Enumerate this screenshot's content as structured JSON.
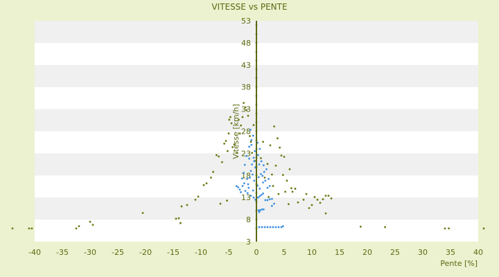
{
  "chart_data": {
    "type": "scatter",
    "title": "VITESSE vs PENTE",
    "xlabel": "Pente [%]",
    "ylabel": "Vitesse [km/h]",
    "xlim": [
      -40,
      40
    ],
    "ylim": [
      3,
      53
    ],
    "xticks": [
      -40,
      -35,
      -30,
      -25,
      -20,
      -15,
      -10,
      -5,
      0,
      5,
      10,
      15,
      20,
      25,
      30,
      35,
      40
    ],
    "yticks": [
      3,
      8,
      13,
      18,
      23,
      28,
      33,
      38,
      43,
      48,
      53
    ],
    "xtick_labels": [
      "-40",
      "-35",
      "-30",
      "-25",
      "-20",
      "-15",
      "-10",
      "-5",
      "0",
      "5",
      "10",
      "15",
      "20",
      "25",
      "30",
      "35",
      "40"
    ],
    "ytick_labels": [
      "3",
      "8",
      "13",
      "18",
      "23",
      "28",
      "33",
      "38",
      "43",
      "48",
      "53"
    ],
    "grid": "horizontal bands",
    "legend": "none",
    "colors": {
      "background": "#ecf1cf",
      "band_light": "#ffffff",
      "band_shade": "#f0f0f0",
      "olive": "#6b7a14",
      "blue": "#3f8fe0"
    },
    "series": [
      {
        "color": "#6b7a14",
        "points": [
          [
            -44,
            6
          ],
          [
            -41,
            6
          ],
          [
            -40.5,
            6
          ],
          [
            -32.5,
            6
          ],
          [
            -32,
            6.5
          ],
          [
            -30,
            7.5
          ],
          [
            -29.5,
            6.8
          ],
          [
            -20.5,
            9.5
          ],
          [
            -14.5,
            8.2
          ],
          [
            -14,
            8.3
          ],
          [
            -13.7,
            7.2
          ],
          [
            -13.5,
            11
          ],
          [
            -12.5,
            11.3
          ],
          [
            -11,
            12.5
          ],
          [
            -10.5,
            13.2
          ],
          [
            -9.5,
            15.8
          ],
          [
            -9,
            16.2
          ],
          [
            -8.2,
            17.5
          ],
          [
            -7.8,
            18.8
          ],
          [
            -7.2,
            22.6
          ],
          [
            -6.8,
            22.3
          ],
          [
            -6.5,
            11.6
          ],
          [
            -6.2,
            21
          ],
          [
            -5.8,
            25.2
          ],
          [
            -5.5,
            25.8
          ],
          [
            -5.3,
            12.3
          ],
          [
            -5.2,
            23.5
          ],
          [
            -5,
            27.5
          ],
          [
            -4.9,
            30.6
          ],
          [
            -4.7,
            31.2
          ],
          [
            -4.5,
            29.8
          ],
          [
            -4.3,
            24.4
          ],
          [
            -4,
            25
          ],
          [
            -3.5,
            23.1
          ],
          [
            -3.2,
            30.6
          ],
          [
            -3,
            27.5
          ],
          [
            -2.8,
            29.3
          ],
          [
            -2.5,
            31.2
          ],
          [
            -2.3,
            34.4
          ],
          [
            -2,
            33.4
          ],
          [
            -1.8,
            32.8
          ],
          [
            -1.5,
            31.5
          ],
          [
            -1.2,
            26.9
          ],
          [
            -1,
            25.6
          ],
          [
            -0.8,
            23.1
          ],
          [
            -0.5,
            29.4
          ],
          [
            -0.3,
            21.3
          ],
          [
            0,
            6
          ],
          [
            0,
            8
          ],
          [
            0,
            10
          ],
          [
            0,
            12
          ],
          [
            0,
            14
          ],
          [
            0,
            16
          ],
          [
            0,
            18
          ],
          [
            0,
            20
          ],
          [
            0,
            22
          ],
          [
            0,
            24
          ],
          [
            0,
            26
          ],
          [
            0,
            28
          ],
          [
            0,
            30
          ],
          [
            0,
            32
          ],
          [
            0,
            34
          ],
          [
            0,
            36
          ],
          [
            0,
            38
          ],
          [
            0,
            40
          ],
          [
            0,
            42
          ],
          [
            0,
            44
          ],
          [
            0,
            46
          ],
          [
            0,
            48
          ],
          [
            0,
            50
          ],
          [
            0,
            52
          ],
          [
            0.8,
            21.9
          ],
          [
            1.2,
            25.6
          ],
          [
            1.5,
            17.5
          ],
          [
            2,
            20.6
          ],
          [
            2.2,
            13.1
          ],
          [
            2.5,
            24.8
          ],
          [
            2.8,
            18.2
          ],
          [
            3,
            15.6
          ],
          [
            3.2,
            29.1
          ],
          [
            3.5,
            20.2
          ],
          [
            3.8,
            26.4
          ],
          [
            4,
            13.8
          ],
          [
            4.2,
            24.3
          ],
          [
            4.5,
            22.5
          ],
          [
            4.8,
            18.1
          ],
          [
            5,
            22.2
          ],
          [
            5.2,
            14.3
          ],
          [
            5.5,
            16.8
          ],
          [
            5.8,
            11.5
          ],
          [
            6,
            19.4
          ],
          [
            6.3,
            15.1
          ],
          [
            6.5,
            14.3
          ],
          [
            7,
            15
          ],
          [
            7.5,
            11.9
          ],
          [
            8.5,
            12.5
          ],
          [
            9,
            13.8
          ],
          [
            9.5,
            10.6
          ],
          [
            10,
            11.3
          ],
          [
            10.5,
            13.1
          ],
          [
            11,
            12.5
          ],
          [
            11.5,
            11.8
          ],
          [
            12,
            12.6
          ],
          [
            12.5,
            13.4
          ],
          [
            13,
            13.4
          ],
          [
            12.5,
            9.4
          ],
          [
            13.5,
            12.8
          ],
          [
            18.8,
            6.4
          ],
          [
            23.2,
            6.3
          ],
          [
            34,
            6
          ],
          [
            34.7,
            6
          ],
          [
            41,
            6
          ]
        ]
      },
      {
        "color": "#3f8fe0",
        "points": [
          [
            -1.5,
            16
          ],
          [
            -1.2,
            17.5
          ],
          [
            -1,
            19
          ],
          [
            -0.8,
            20.5
          ],
          [
            -0.5,
            22
          ],
          [
            -0.3,
            23.5
          ],
          [
            -1.3,
            24.5
          ],
          [
            -0.9,
            26
          ],
          [
            -0.6,
            27
          ],
          [
            -1.1,
            28.3
          ],
          [
            -1.7,
            17.2
          ],
          [
            -2.2,
            16.2
          ],
          [
            -2.5,
            15.6
          ],
          [
            -2,
            14.5
          ],
          [
            -1.6,
            14
          ],
          [
            -1,
            13.4
          ],
          [
            -0.5,
            13
          ],
          [
            -0.2,
            12.5
          ],
          [
            -1.4,
            15.2
          ],
          [
            -0.7,
            18.2
          ],
          [
            -0.4,
            21.2
          ],
          [
            -1.8,
            22.4
          ],
          [
            -2.1,
            20.4
          ],
          [
            -1.3,
            21.8
          ],
          [
            -0.9,
            24.9
          ],
          [
            -2.3,
            18.6
          ],
          [
            -2.6,
            17.3
          ],
          [
            0.3,
            13
          ],
          [
            0.6,
            13.3
          ],
          [
            0.9,
            13.6
          ],
          [
            1.2,
            13.9
          ],
          [
            1.6,
            12.4
          ],
          [
            2,
            12.4
          ],
          [
            2.4,
            12.6
          ],
          [
            2.8,
            12.7
          ],
          [
            0.4,
            17.6
          ],
          [
            0.8,
            18.3
          ],
          [
            1.1,
            17.9
          ],
          [
            1.4,
            18.8
          ],
          [
            0.5,
            20.5
          ],
          [
            0.9,
            21.2
          ],
          [
            0.3,
            22.6
          ],
          [
            0.6,
            24
          ],
          [
            0.2,
            25.4
          ],
          [
            1.2,
            16.4
          ],
          [
            1.6,
            16.8
          ],
          [
            2,
            15.2
          ],
          [
            2.4,
            15.6
          ],
          [
            0.4,
            10.1
          ],
          [
            0.7,
            10.1
          ],
          [
            1,
            10.3
          ],
          [
            1.3,
            10.3
          ],
          [
            0.5,
            9.7
          ],
          [
            0.5,
            6.3
          ],
          [
            1,
            6.3
          ],
          [
            1.5,
            6.3
          ],
          [
            2,
            6.3
          ],
          [
            2.5,
            6.3
          ],
          [
            3,
            6.3
          ],
          [
            3.5,
            6.3
          ],
          [
            4,
            6.3
          ],
          [
            4.5,
            6.3
          ],
          [
            4.8,
            6.5
          ],
          [
            3.2,
            11.6
          ],
          [
            2.8,
            11.1
          ],
          [
            2.2,
            17.2
          ],
          [
            1.8,
            19.4
          ],
          [
            1.3,
            20.3
          ],
          [
            0.2,
            15.7
          ],
          [
            0.6,
            15
          ],
          [
            -0.2,
            19.8
          ],
          [
            -0.4,
            16.8
          ],
          [
            -0.6,
            14.6
          ],
          [
            -2.8,
            14.2
          ],
          [
            -3,
            14.8
          ],
          [
            -3.3,
            15.3
          ],
          [
            -3.6,
            15.6
          ]
        ]
      }
    ]
  }
}
